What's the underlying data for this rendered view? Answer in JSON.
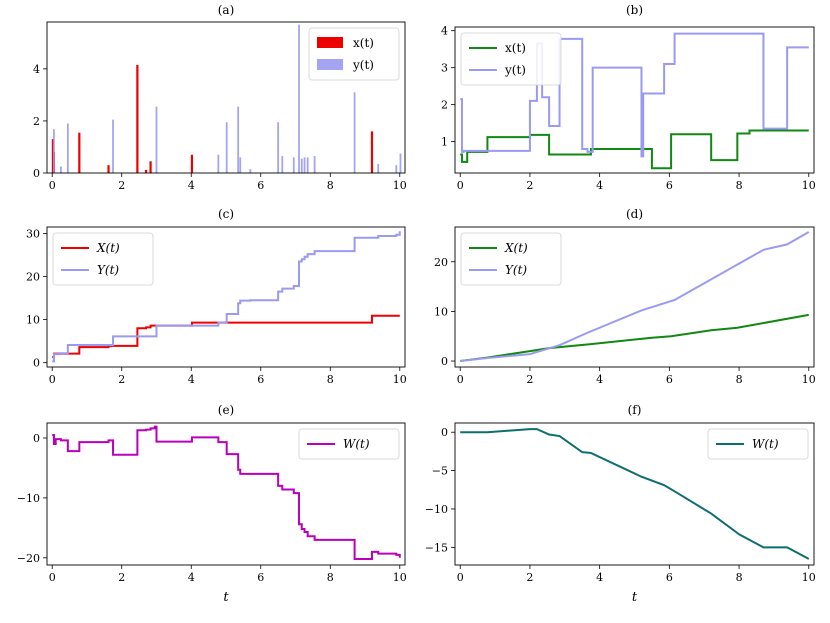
{
  "figure": {
    "xlabel": "t"
  },
  "colors": {
    "red": "#ee0000",
    "blue": "#9a9af2",
    "green": "#118811",
    "magenta": "#bb00bb",
    "teal": "#0d6e6e"
  },
  "chart_data": [
    {
      "id": "a",
      "type": "bar",
      "title": "(a)",
      "xlim": [
        -0.15,
        10.15
      ],
      "ylim": [
        0,
        5.8
      ],
      "xticks": [
        0,
        2,
        4,
        6,
        8,
        10
      ],
      "yticks": [
        0,
        2,
        4
      ],
      "legend": {
        "position": "top-right",
        "entries": [
          "x(t)",
          "y(t)"
        ]
      },
      "series": [
        {
          "name": "x(t)",
          "color": "red",
          "x": [
            0.02,
            0.05,
            0.78,
            1.62,
            2.45,
            2.7,
            2.83,
            4.02,
            9.2
          ],
          "values": [
            1.3,
            0.8,
            1.55,
            0.3,
            4.15,
            0.12,
            0.45,
            0.7,
            1.6
          ]
        },
        {
          "name": "y(t)",
          "color": "blue",
          "x": [
            0.05,
            0.25,
            0.45,
            1.75,
            3.0,
            4.78,
            5.02,
            5.35,
            5.41,
            5.7,
            6.5,
            6.62,
            6.95,
            7.1,
            7.18,
            7.26,
            7.35,
            7.55,
            8.7,
            9.38,
            9.9,
            10.02
          ],
          "values": [
            1.68,
            0.25,
            1.9,
            2.05,
            2.55,
            0.7,
            1.95,
            2.55,
            0.6,
            0.15,
            1.95,
            0.65,
            0.6,
            5.7,
            0.55,
            0.6,
            0.6,
            0.65,
            3.1,
            0.35,
            0.3,
            0.75
          ]
        }
      ]
    },
    {
      "id": "b",
      "type": "line",
      "title": "(b)",
      "xlim": [
        -0.15,
        10.15
      ],
      "ylim": [
        0.15,
        4.1
      ],
      "xticks": [
        0,
        2,
        4,
        6,
        8,
        10
      ],
      "yticks": [
        1,
        2,
        3,
        4
      ],
      "legend": {
        "position": "top-left",
        "entries": [
          "x(t)",
          "y(t)"
        ]
      },
      "series": [
        {
          "name": "x(t)",
          "color": "green",
          "step": true,
          "x": [
            0,
            0.05,
            0.2,
            0.78,
            2.0,
            2.55,
            3.75,
            5.5,
            6.05,
            7.2,
            7.95,
            8.3,
            8.7,
            10.0
          ],
          "values": [
            0.65,
            0.45,
            0.72,
            1.12,
            1.18,
            0.65,
            0.8,
            0.28,
            1.2,
            0.5,
            1.22,
            1.3,
            1.3,
            1.3
          ]
        },
        {
          "name": "y(t)",
          "color": "blue",
          "step": true,
          "x": [
            0,
            0.05,
            0.1,
            2.0,
            2.2,
            2.35,
            2.55,
            2.85,
            3.5,
            3.65,
            3.8,
            5.2,
            5.25,
            5.85,
            6.15,
            8.7,
            9.38,
            10.0
          ],
          "values": [
            2.15,
            0.72,
            0.75,
            2.1,
            3.65,
            2.2,
            1.42,
            3.78,
            0.8,
            0.72,
            3.0,
            0.6,
            2.3,
            3.1,
            3.92,
            1.35,
            3.55,
            3.55
          ]
        }
      ]
    },
    {
      "id": "c",
      "type": "line",
      "title": "(c)",
      "xlim": [
        -0.15,
        10.15
      ],
      "ylim": [
        -1,
        31.5
      ],
      "xticks": [
        0,
        2,
        4,
        6,
        8,
        10
      ],
      "yticks": [
        0,
        10,
        20,
        30
      ],
      "legend": {
        "position": "top-left",
        "entries": [
          "X(t)",
          "Y(t)"
        ]
      },
      "series": [
        {
          "name": "X(t)",
          "color": "red",
          "step": true,
          "x": [
            0,
            0.05,
            0.78,
            1.62,
            2.45,
            2.7,
            2.83,
            4.02,
            9.2,
            10.0
          ],
          "values": [
            1.3,
            2.1,
            3.6,
            3.9,
            8.0,
            8.2,
            8.6,
            9.3,
            10.9,
            10.9
          ]
        },
        {
          "name": "Y(t)",
          "color": "blue",
          "step": true,
          "x": [
            0,
            0.05,
            0.25,
            0.45,
            1.75,
            3.0,
            4.78,
            5.02,
            5.35,
            5.41,
            5.7,
            6.5,
            6.62,
            6.95,
            7.1,
            7.18,
            7.26,
            7.35,
            7.55,
            8.7,
            9.38,
            9.9,
            10.0
          ],
          "values": [
            0.3,
            2.0,
            2.2,
            4.1,
            6.1,
            8.6,
            9.3,
            11.3,
            13.8,
            14.4,
            14.5,
            16.5,
            17.2,
            17.8,
            23.5,
            24.0,
            24.6,
            25.2,
            25.9,
            29.0,
            29.4,
            29.7,
            30.5
          ]
        }
      ]
    },
    {
      "id": "d",
      "type": "line",
      "title": "(d)",
      "xlim": [
        -0.15,
        10.15
      ],
      "ylim": [
        -1.2,
        27
      ],
      "xticks": [
        0,
        2,
        4,
        6,
        8,
        10
      ],
      "yticks": [
        0,
        10,
        20
      ],
      "legend": {
        "position": "top-left",
        "entries": [
          "X(t)",
          "Y(t)"
        ]
      },
      "series": [
        {
          "name": "X(t)",
          "color": "green",
          "step": false,
          "x": [
            0,
            0.78,
            2.0,
            2.55,
            3.75,
            5.5,
            6.05,
            7.2,
            7.95,
            10.0
          ],
          "values": [
            0,
            0.7,
            2.0,
            2.6,
            3.4,
            4.7,
            5.0,
            6.2,
            6.7,
            9.3
          ]
        },
        {
          "name": "Y(t)",
          "color": "blue",
          "step": false,
          "x": [
            0,
            0.78,
            2.0,
            2.85,
            3.65,
            5.2,
            6.15,
            8.7,
            9.38,
            10.0
          ],
          "values": [
            0,
            0.6,
            1.4,
            3.2,
            5.7,
            10.2,
            12.3,
            22.4,
            23.5,
            26.0
          ]
        }
      ]
    },
    {
      "id": "e",
      "type": "line",
      "title": "(e)",
      "xlim": [
        -0.15,
        10.15
      ],
      "ylim": [
        -21.2,
        2.5
      ],
      "xticks": [
        0,
        2,
        4,
        6,
        8,
        10
      ],
      "yticks": [
        0,
        -10,
        -20
      ],
      "xlabel": "t",
      "legend": {
        "position": "top-right",
        "entries": [
          "W(t)"
        ]
      },
      "series": [
        {
          "name": "W(t)",
          "color": "magenta",
          "step": true,
          "x": [
            0,
            0.05,
            0.1,
            0.25,
            0.45,
            0.78,
            1.62,
            1.75,
            2.45,
            2.7,
            2.83,
            2.95,
            3.0,
            4.02,
            4.78,
            5.02,
            5.35,
            5.41,
            6.5,
            6.62,
            6.95,
            7.1,
            7.18,
            7.26,
            7.35,
            7.55,
            8.7,
            9.2,
            9.38,
            9.9,
            10.0
          ],
          "values": [
            0.5,
            -1.0,
            -0.2,
            -0.4,
            -2.2,
            -0.7,
            -0.4,
            -2.8,
            1.3,
            1.4,
            1.6,
            1.9,
            -0.6,
            0.1,
            -0.7,
            -2.7,
            -5.3,
            -6.0,
            -8.0,
            -8.6,
            -9.2,
            -14.4,
            -15.2,
            -15.7,
            -16.4,
            -17.0,
            -20.2,
            -19.0,
            -19.3,
            -19.5,
            -20.0
          ]
        }
      ]
    },
    {
      "id": "f",
      "type": "line",
      "title": "(f)",
      "xlim": [
        -0.15,
        10.15
      ],
      "ylim": [
        -17.3,
        1.2
      ],
      "xticks": [
        0,
        2,
        4,
        6,
        8,
        10
      ],
      "yticks": [
        0,
        -5,
        -10,
        -15
      ],
      "xlabel": "t",
      "legend": {
        "position": "top-right",
        "entries": [
          "W(t)"
        ]
      },
      "series": [
        {
          "name": "W(t)",
          "color": "teal",
          "step": false,
          "x": [
            0,
            0.78,
            2.0,
            2.2,
            2.55,
            2.85,
            3.5,
            3.75,
            5.2,
            5.85,
            6.15,
            7.2,
            8.0,
            8.7,
            9.38,
            10.0
          ],
          "values": [
            0,
            0,
            0.4,
            0.4,
            -0.3,
            -0.5,
            -2.6,
            -2.7,
            -5.8,
            -6.9,
            -7.7,
            -10.6,
            -13.3,
            -15.0,
            -15.0,
            -16.5
          ]
        }
      ]
    }
  ]
}
